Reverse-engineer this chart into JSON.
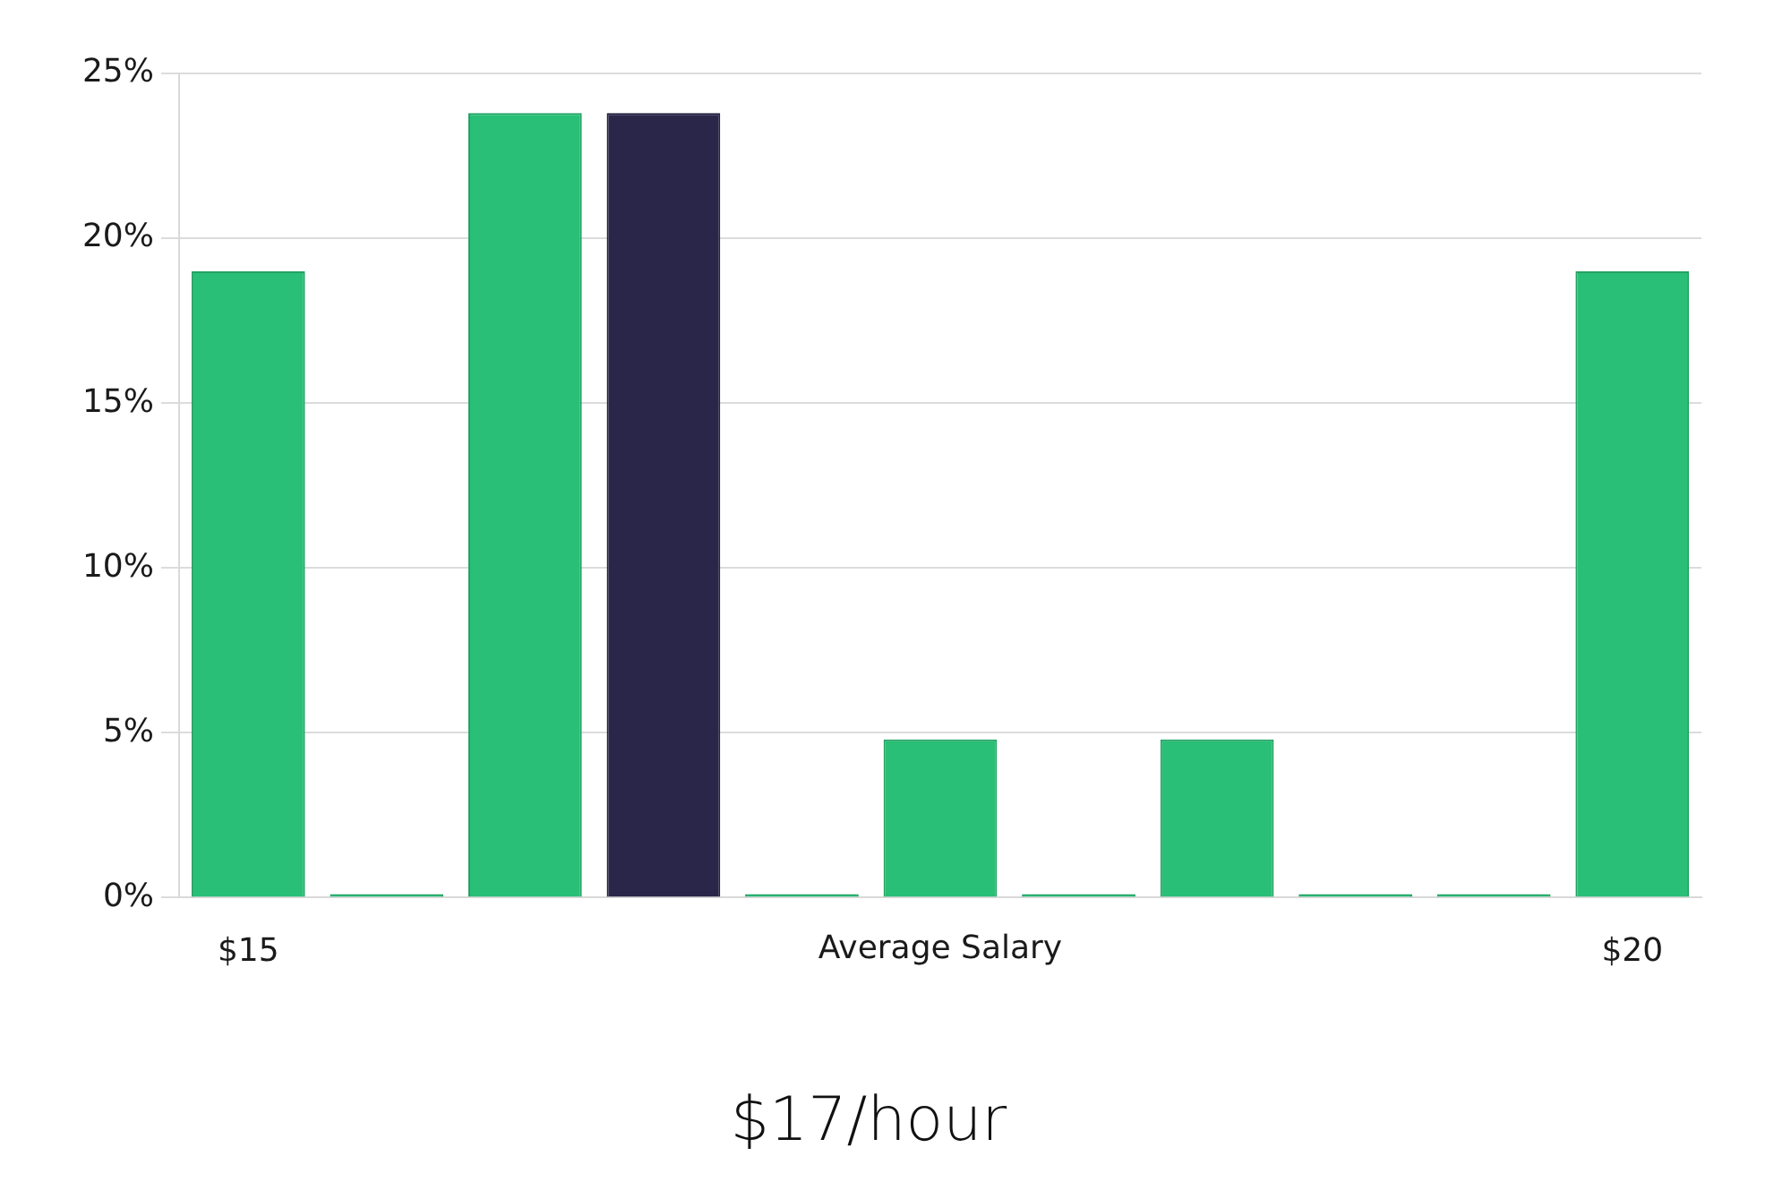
{
  "chart_data": {
    "type": "bar",
    "title": "$17/hour",
    "xlabel": "Average Salary",
    "categories": [
      "$15",
      null,
      null,
      null,
      null,
      null,
      null,
      null,
      null,
      null,
      "$20"
    ],
    "values": [
      19,
      0,
      23.8,
      23.8,
      0,
      4.8,
      0,
      4.8,
      0,
      0,
      19
    ],
    "colors": [
      "#2abf76",
      "#2abf76",
      "#2abf76",
      "#29264a",
      "#2abf76",
      "#2abf76",
      "#2abf76",
      "#2abf76",
      "#2abf76",
      "#2abf76",
      "#2abf76"
    ],
    "ylim": [
      0,
      25
    ],
    "yticks": [
      {
        "value": 0,
        "label": "0%"
      },
      {
        "value": 5,
        "label": "5%"
      },
      {
        "value": 10,
        "label": "10%"
      },
      {
        "value": 15,
        "label": "15%"
      },
      {
        "value": 20,
        "label": "20%"
      },
      {
        "value": 25,
        "label": "25%"
      }
    ],
    "grid": "y"
  }
}
